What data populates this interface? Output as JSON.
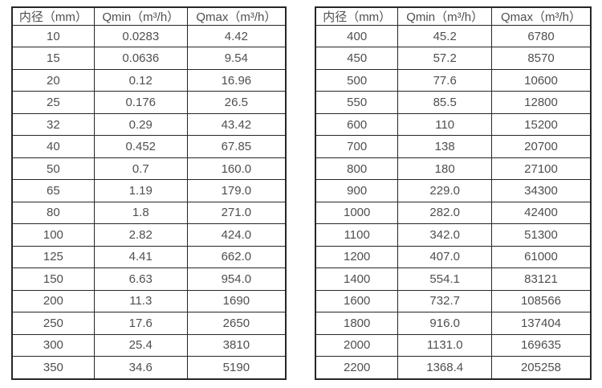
{
  "page": {
    "background_color": "#ffffff",
    "border_color": "#262626",
    "text_color": "#4f4f4f"
  },
  "tables": [
    {
      "name": "flow-table-small-diameters",
      "headers": [
        "内径（mm）",
        "Qmin（m³/h）",
        "Qmax（m³/h）"
      ],
      "rows": [
        [
          "10",
          "0.0283",
          "4.42"
        ],
        [
          "15",
          "0.0636",
          "9.54"
        ],
        [
          "20",
          "0.12",
          "16.96"
        ],
        [
          "25",
          "0.176",
          "26.5"
        ],
        [
          "32",
          "0.29",
          "43.42"
        ],
        [
          "40",
          "0.452",
          "67.85"
        ],
        [
          "50",
          "0.7",
          "160.0"
        ],
        [
          "65",
          "1.19",
          "179.0"
        ],
        [
          "80",
          "1.8",
          "271.0"
        ],
        [
          "100",
          "2.82",
          "424.0"
        ],
        [
          "125",
          "4.41",
          "662.0"
        ],
        [
          "150",
          "6.63",
          "954.0"
        ],
        [
          "200",
          "11.3",
          "1690"
        ],
        [
          "250",
          "17.6",
          "2650"
        ],
        [
          "300",
          "25.4",
          "3810"
        ],
        [
          "350",
          "34.6",
          "5190"
        ]
      ]
    },
    {
      "name": "flow-table-large-diameters",
      "headers": [
        "内径（mm）",
        "Qmin（m³/h）",
        "Qmax（m³/h）"
      ],
      "rows": [
        [
          "400",
          "45.2",
          "6780"
        ],
        [
          "450",
          "57.2",
          "8570"
        ],
        [
          "500",
          "77.6",
          "10600"
        ],
        [
          "550",
          "85.5",
          "12800"
        ],
        [
          "600",
          "110",
          "15200"
        ],
        [
          "700",
          "138",
          "20700"
        ],
        [
          "800",
          "180",
          "27100"
        ],
        [
          "900",
          "229.0",
          "34300"
        ],
        [
          "1000",
          "282.0",
          "42400"
        ],
        [
          "1100",
          "342.0",
          "51300"
        ],
        [
          "1200",
          "407.0",
          "61000"
        ],
        [
          "1400",
          "554.1",
          "83121"
        ],
        [
          "1600",
          "732.7",
          "108566"
        ],
        [
          "1800",
          "916.0",
          "137404"
        ],
        [
          "2000",
          "1131.0",
          "169635"
        ],
        [
          "2200",
          "1368.4",
          "205258"
        ]
      ]
    }
  ]
}
